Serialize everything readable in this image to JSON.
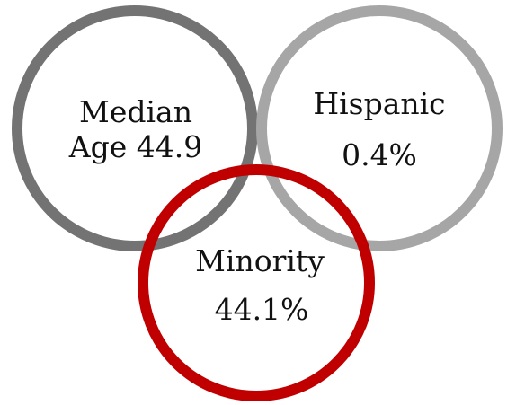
{
  "colors": {
    "ring_dark_gray": "#737373",
    "ring_light_gray": "#a6a6a6",
    "ring_red": "#c00000",
    "text": "#111111",
    "background": "#ffffff"
  },
  "circles": [
    {
      "name": "median-age",
      "line1": "Median",
      "line2": "Age 44.9"
    },
    {
      "name": "hispanic",
      "line1": "Hispanic",
      "line2": "0.4%"
    },
    {
      "name": "minority",
      "line1": "Minority",
      "line2": "44.1%"
    }
  ]
}
